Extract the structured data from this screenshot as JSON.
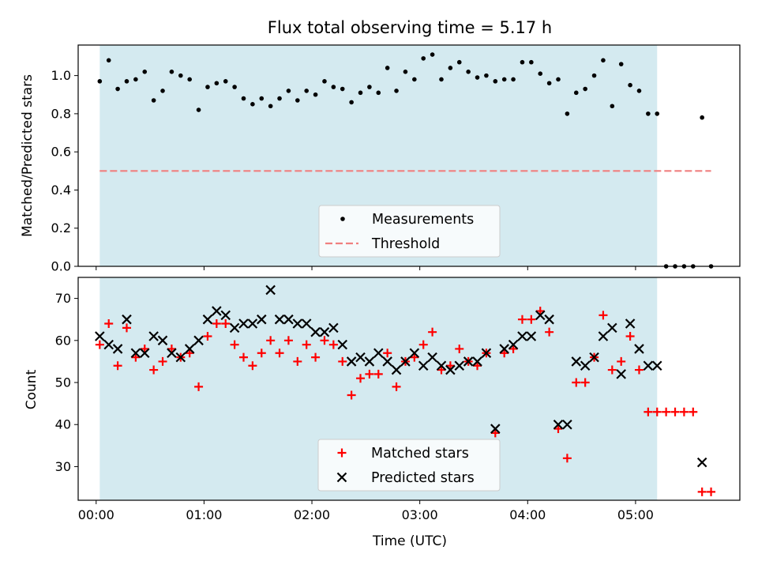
{
  "chart_data": [
    {
      "type": "scatter",
      "title": "Flux total observing time = 5.17 h",
      "xlabel": "",
      "ylabel": "Matched/Predicted stars",
      "xlim": [
        "23:50",
        "05:58"
      ],
      "ylim": [
        0,
        1.16
      ],
      "yticks": [
        "0.0",
        "0.2",
        "0.4",
        "0.6",
        "0.8",
        "1.0"
      ],
      "shaded_region": {
        "start": "00:02",
        "end": "05:12",
        "color": "#d4eaf0"
      },
      "legend": {
        "placement": "lower-center",
        "entries": [
          "Measurements",
          "Threshold"
        ]
      },
      "series": [
        {
          "name": "Measurements",
          "marker": "dot",
          "color": "#000000",
          "points": [
            [
              "00:02",
              0.97
            ],
            [
              "00:07",
              1.08
            ],
            [
              "00:12",
              0.93
            ],
            [
              "00:17",
              0.97
            ],
            [
              "00:22",
              0.98
            ],
            [
              "00:27",
              1.02
            ],
            [
              "00:32",
              0.87
            ],
            [
              "00:37",
              0.92
            ],
            [
              "00:42",
              1.02
            ],
            [
              "00:47",
              1.0
            ],
            [
              "00:52",
              0.98
            ],
            [
              "00:57",
              0.82
            ],
            [
              "01:02",
              0.94
            ],
            [
              "01:07",
              0.96
            ],
            [
              "01:12",
              0.97
            ],
            [
              "01:17",
              0.94
            ],
            [
              "01:22",
              0.88
            ],
            [
              "01:27",
              0.85
            ],
            [
              "01:32",
              0.88
            ],
            [
              "01:37",
              0.84
            ],
            [
              "01:42",
              0.88
            ],
            [
              "01:47",
              0.92
            ],
            [
              "01:52",
              0.87
            ],
            [
              "01:57",
              0.92
            ],
            [
              "02:02",
              0.9
            ],
            [
              "02:07",
              0.97
            ],
            [
              "02:12",
              0.94
            ],
            [
              "02:17",
              0.93
            ],
            [
              "02:22",
              0.86
            ],
            [
              "02:27",
              0.91
            ],
            [
              "02:32",
              0.94
            ],
            [
              "02:37",
              0.91
            ],
            [
              "02:42",
              1.04
            ],
            [
              "02:47",
              0.92
            ],
            [
              "02:52",
              1.02
            ],
            [
              "02:57",
              0.98
            ],
            [
              "03:02",
              1.09
            ],
            [
              "03:07",
              1.11
            ],
            [
              "03:12",
              0.98
            ],
            [
              "03:17",
              1.04
            ],
            [
              "03:22",
              1.07
            ],
            [
              "03:27",
              1.02
            ],
            [
              "03:32",
              0.99
            ],
            [
              "03:37",
              1.0
            ],
            [
              "03:42",
              0.97
            ],
            [
              "03:47",
              0.98
            ],
            [
              "03:52",
              0.98
            ],
            [
              "03:57",
              1.07
            ],
            [
              "04:02",
              1.07
            ],
            [
              "04:07",
              1.01
            ],
            [
              "04:12",
              0.96
            ],
            [
              "04:17",
              0.98
            ],
            [
              "04:22",
              0.8
            ],
            [
              "04:27",
              0.91
            ],
            [
              "04:32",
              0.93
            ],
            [
              "04:37",
              1.0
            ],
            [
              "04:42",
              1.08
            ],
            [
              "04:47",
              0.84
            ],
            [
              "04:52",
              1.06
            ],
            [
              "04:57",
              0.95
            ],
            [
              "05:02",
              0.92
            ],
            [
              "05:07",
              0.8
            ],
            [
              "05:12",
              0.8
            ],
            [
              "05:17",
              0.0
            ],
            [
              "05:22",
              0.0
            ],
            [
              "05:27",
              0.0
            ],
            [
              "05:32",
              0.0
            ],
            [
              "05:37",
              0.78
            ],
            [
              "05:42",
              0.0
            ]
          ]
        },
        {
          "name": "Threshold",
          "marker": "dashed-line",
          "color": "#f08080",
          "points": [
            [
              "00:02",
              0.5
            ],
            [
              "05:42",
              0.5
            ]
          ]
        }
      ]
    },
    {
      "type": "scatter",
      "title": "",
      "xlabel": "Time (UTC)",
      "ylabel": "Count",
      "xlim": [
        "23:50",
        "05:58"
      ],
      "ylim": [
        22,
        75
      ],
      "xticks": [
        "00:00",
        "01:00",
        "02:00",
        "03:00",
        "04:00",
        "05:00"
      ],
      "yticks": [
        "30",
        "40",
        "50",
        "60",
        "70"
      ],
      "shaded_region": {
        "start": "00:02",
        "end": "05:12",
        "color": "#d4eaf0"
      },
      "legend": {
        "placement": "lower-center",
        "entries": [
          "Matched stars",
          "Predicted stars"
        ]
      },
      "series": [
        {
          "name": "Matched stars",
          "marker": "plus",
          "color": "#ff0000",
          "points": [
            [
              "00:02",
              59
            ],
            [
              "00:07",
              64
            ],
            [
              "00:12",
              54
            ],
            [
              "00:17",
              63
            ],
            [
              "00:22",
              56
            ],
            [
              "00:27",
              58
            ],
            [
              "00:32",
              53
            ],
            [
              "00:37",
              55
            ],
            [
              "00:42",
              58
            ],
            [
              "00:47",
              56
            ],
            [
              "00:52",
              57
            ],
            [
              "00:57",
              49
            ],
            [
              "01:02",
              61
            ],
            [
              "01:07",
              64
            ],
            [
              "01:12",
              64
            ],
            [
              "01:17",
              59
            ],
            [
              "01:22",
              56
            ],
            [
              "01:27",
              54
            ],
            [
              "01:32",
              57
            ],
            [
              "01:37",
              60
            ],
            [
              "01:42",
              57
            ],
            [
              "01:47",
              60
            ],
            [
              "01:52",
              55
            ],
            [
              "01:57",
              59
            ],
            [
              "02:02",
              56
            ],
            [
              "02:07",
              60
            ],
            [
              "02:12",
              59
            ],
            [
              "02:17",
              55
            ],
            [
              "02:22",
              47
            ],
            [
              "02:27",
              51
            ],
            [
              "02:32",
              52
            ],
            [
              "02:37",
              52
            ],
            [
              "02:42",
              57
            ],
            [
              "02:47",
              49
            ],
            [
              "02:52",
              55
            ],
            [
              "02:57",
              56
            ],
            [
              "03:02",
              59
            ],
            [
              "03:07",
              62
            ],
            [
              "03:12",
              53
            ],
            [
              "03:17",
              54
            ],
            [
              "03:22",
              58
            ],
            [
              "03:27",
              55
            ],
            [
              "03:32",
              54
            ],
            [
              "03:37",
              57
            ],
            [
              "03:42",
              38
            ],
            [
              "03:47",
              57
            ],
            [
              "03:52",
              58
            ],
            [
              "03:57",
              65
            ],
            [
              "04:02",
              65
            ],
            [
              "04:07",
              67
            ],
            [
              "04:12",
              62
            ],
            [
              "04:17",
              39
            ],
            [
              "04:22",
              32
            ],
            [
              "04:27",
              50
            ],
            [
              "04:32",
              50
            ],
            [
              "04:37",
              56
            ],
            [
              "04:42",
              66
            ],
            [
              "04:47",
              53
            ],
            [
              "04:52",
              55
            ],
            [
              "04:57",
              61
            ],
            [
              "05:02",
              53
            ],
            [
              "05:07",
              43
            ],
            [
              "05:12",
              43
            ],
            [
              "05:17",
              43
            ],
            [
              "05:22",
              43
            ],
            [
              "05:27",
              43
            ],
            [
              "05:32",
              43
            ],
            [
              "05:37",
              24
            ],
            [
              "05:42",
              24
            ]
          ]
        },
        {
          "name": "Predicted stars",
          "marker": "x",
          "color": "#000000",
          "points": [
            [
              "00:02",
              61
            ],
            [
              "00:07",
              59
            ],
            [
              "00:12",
              58
            ],
            [
              "00:17",
              65
            ],
            [
              "00:22",
              57
            ],
            [
              "00:27",
              57
            ],
            [
              "00:32",
              61
            ],
            [
              "00:37",
              60
            ],
            [
              "00:42",
              57
            ],
            [
              "00:47",
              56
            ],
            [
              "00:52",
              58
            ],
            [
              "00:57",
              60
            ],
            [
              "01:02",
              65
            ],
            [
              "01:07",
              67
            ],
            [
              "01:12",
              66
            ],
            [
              "01:17",
              63
            ],
            [
              "01:22",
              64
            ],
            [
              "01:27",
              64
            ],
            [
              "01:32",
              65
            ],
            [
              "01:37",
              72
            ],
            [
              "01:42",
              65
            ],
            [
              "01:47",
              65
            ],
            [
              "01:52",
              64
            ],
            [
              "01:57",
              64
            ],
            [
              "02:02",
              62
            ],
            [
              "02:07",
              62
            ],
            [
              "02:12",
              63
            ],
            [
              "02:17",
              59
            ],
            [
              "02:22",
              55
            ],
            [
              "02:27",
              56
            ],
            [
              "02:32",
              55
            ],
            [
              "02:37",
              57
            ],
            [
              "02:42",
              55
            ],
            [
              "02:47",
              53
            ],
            [
              "02:52",
              55
            ],
            [
              "02:57",
              57
            ],
            [
              "03:02",
              54
            ],
            [
              "03:07",
              56
            ],
            [
              "03:12",
              54
            ],
            [
              "03:17",
              53
            ],
            [
              "03:22",
              54
            ],
            [
              "03:27",
              55
            ],
            [
              "03:32",
              55
            ],
            [
              "03:37",
              57
            ],
            [
              "03:42",
              39
            ],
            [
              "03:47",
              58
            ],
            [
              "03:52",
              59
            ],
            [
              "03:57",
              61
            ],
            [
              "04:02",
              61
            ],
            [
              "04:07",
              66
            ],
            [
              "04:12",
              65
            ],
            [
              "04:17",
              40
            ],
            [
              "04:22",
              40
            ],
            [
              "04:27",
              55
            ],
            [
              "04:32",
              54
            ],
            [
              "04:37",
              56
            ],
            [
              "04:42",
              61
            ],
            [
              "04:47",
              63
            ],
            [
              "04:52",
              52
            ],
            [
              "04:57",
              64
            ],
            [
              "05:02",
              58
            ],
            [
              "05:07",
              54
            ],
            [
              "05:12",
              54
            ],
            [
              "05:37",
              31
            ]
          ]
        }
      ]
    }
  ]
}
